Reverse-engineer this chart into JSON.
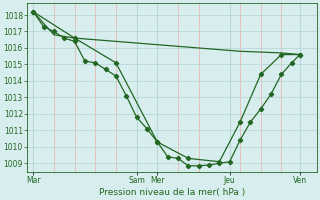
{
  "title": "",
  "xlabel": "Pression niveau de la mer( hPa )",
  "ylabel": "",
  "background_color": "#d8eeee",
  "plot_bg_color": "#d8eeee",
  "grid_color_major": "#b8d8d8",
  "grid_color_minor": "#e8b8b8",
  "line_color": "#226622",
  "ylim": [
    1008.5,
    1018.7
  ],
  "xlim": [
    0,
    14
  ],
  "day_labels": [
    "Mar",
    "Sam",
    "Mer",
    "Jeu",
    "Ven"
  ],
  "day_positions": [
    0.3,
    5.3,
    6.3,
    9.8,
    13.2
  ],
  "series1_x": [
    0.3,
    0.8,
    1.3,
    1.8,
    2.3,
    2.8,
    3.3,
    3.8,
    4.3,
    4.8,
    5.3,
    5.8,
    6.3,
    6.8,
    7.3,
    7.8,
    8.3,
    8.8,
    9.3,
    9.8,
    10.3,
    10.8,
    11.3,
    11.8,
    12.3,
    12.8,
    13.2
  ],
  "series1_y": [
    1018.2,
    1017.3,
    1017.0,
    1016.6,
    1016.4,
    1015.2,
    1015.1,
    1014.7,
    1014.3,
    1013.1,
    1011.8,
    1011.1,
    1010.3,
    1009.4,
    1009.3,
    1008.85,
    1008.85,
    1008.9,
    1009.0,
    1009.1,
    1010.4,
    1011.5,
    1012.3,
    1013.2,
    1014.4,
    1015.1,
    1015.6
  ],
  "series2_x": [
    0.3,
    1.3,
    2.3,
    3.3,
    4.3,
    5.3,
    6.3,
    7.3,
    8.3,
    9.3,
    10.3,
    11.3,
    12.3,
    13.2
  ],
  "series2_y": [
    1018.2,
    1016.8,
    1016.6,
    1016.5,
    1016.4,
    1016.3,
    1016.2,
    1016.1,
    1016.0,
    1015.9,
    1015.8,
    1015.75,
    1015.7,
    1015.6
  ],
  "series3_x": [
    0.3,
    2.3,
    4.3,
    6.3,
    7.8,
    9.3,
    10.3,
    11.3,
    12.3,
    13.2
  ],
  "series3_y": [
    1018.2,
    1016.6,
    1015.1,
    1010.3,
    1009.3,
    1009.1,
    1011.5,
    1014.4,
    1015.6,
    1015.6
  ],
  "yticks": [
    1009,
    1010,
    1011,
    1012,
    1013,
    1014,
    1015,
    1016,
    1017,
    1018
  ],
  "xtick_minor_positions": [
    1.3,
    2.3,
    3.3,
    4.3,
    6.3,
    7.3,
    8.3,
    10.3,
    11.3,
    12.3
  ]
}
